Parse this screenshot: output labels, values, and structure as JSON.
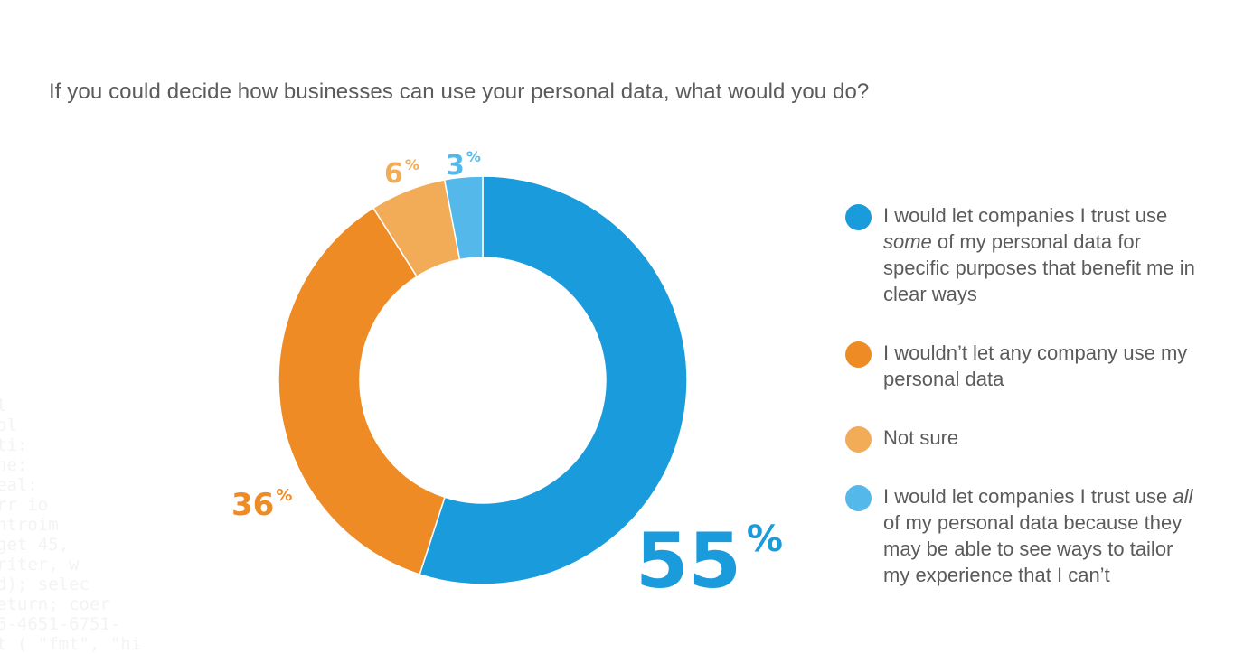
{
  "title": "If you could decide how businesses can use your personal data, what would you do?",
  "background_code_lines": [
    "l",
    "ol",
    "ti:",
    "ne:",
    "eal:",
    "rr io",
    "ntroim",
    "get 45,",
    "riter, w ",
    "d); selec",
    "eturn; coer",
    "6-4651-6751-",
    "t ( \"fmt\", \"hi"
  ],
  "legend": [
    {
      "before": "I would let companies I trust use ",
      "emphasis": "some",
      "after": " of my personal data for specific purposes that benefit me in clear ways",
      "color": "#1a9bdb"
    },
    {
      "before": "I wouldn’t let any company use my personal data",
      "emphasis": "",
      "after": "",
      "color": "#ef8b24"
    },
    {
      "before": "Not sure",
      "emphasis": "",
      "after": "",
      "color": "#f2ab57"
    },
    {
      "before": "I would let companies I trust use ",
      "emphasis": "all",
      "after": " of my personal data because they may be able to see ways to tailor my experience that I can’t",
      "color": "#55b8ea"
    }
  ],
  "chart_data": {
    "type": "pie",
    "donut": true,
    "title": "If you could decide how businesses can use your personal data, what would you do?",
    "categories": [
      "I would let companies I trust use some of my personal data for specific purposes that benefit me in clear ways",
      "I wouldn’t let any company use my personal data",
      "Not sure",
      "I would let companies I trust use all of my personal data because they may be able to see ways to tailor my experience that I can’t"
    ],
    "values": [
      55,
      36,
      6,
      3
    ],
    "labels": [
      {
        "number": "55",
        "suffix": "%"
      },
      {
        "number": "36",
        "suffix": "%"
      },
      {
        "number": "6",
        "suffix": "%"
      },
      {
        "number": "3",
        "suffix": "%"
      }
    ],
    "colors": [
      "#1a9bdb",
      "#ef8b24",
      "#f2ab57",
      "#55b8ea"
    ],
    "start": "12 o'clock",
    "direction": "clockwise",
    "legend_position": "right"
  }
}
